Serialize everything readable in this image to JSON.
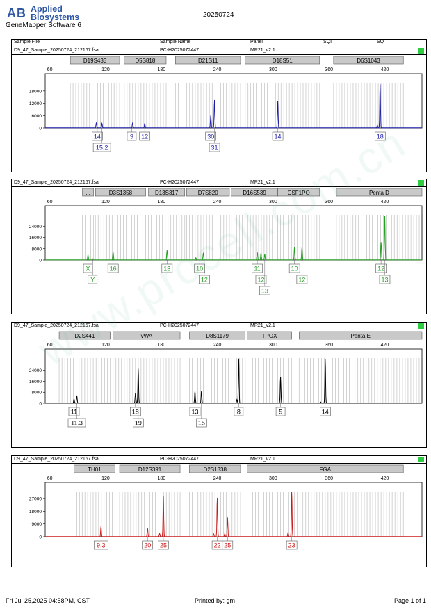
{
  "header": {
    "brand_line1": "Applied",
    "brand_line2": "Biosystems",
    "software": "GeneMapper Software 6",
    "run_date": "20250724"
  },
  "table_header": {
    "sample_file": "Sample File",
    "sample_name": "Sample Name",
    "panel": "Panel",
    "sqi": "SQI",
    "sq": "SQ"
  },
  "footer": {
    "printed_on": "Fri Jul 25,2025 04:58PM, CST",
    "printed_by": "Printed by: gm",
    "page": "Page 1 of 1"
  },
  "watermark": "www.procell.com.cn",
  "colors": {
    "blue": "#1a1aa8",
    "green": "#22a020",
    "black": "#000000",
    "red": "#cc1a1a",
    "sq_ok": "#2ecc40"
  },
  "chart_data": [
    {
      "type": "line",
      "dye": "blue",
      "sample_file": "D9_47_Sample_20250724_212167.fsa",
      "sample_name": "PC-H2025072447",
      "panel": "MR21_v2.1",
      "x_ticks": [
        60,
        120,
        180,
        240,
        300,
        360,
        420
      ],
      "y_ticks": [
        0,
        6000,
        12000,
        18000
      ],
      "ylim": [
        0,
        22000
      ],
      "loci": [
        {
          "name": "D19S433",
          "start": 82,
          "end": 135
        },
        {
          "name": "D5S818",
          "start": 140,
          "end": 185
        },
        {
          "name": "D21S11",
          "start": 195,
          "end": 265
        },
        {
          "name": "D18S51",
          "start": 270,
          "end": 350
        },
        {
          "name": "D6S1043",
          "start": 365,
          "end": 440
        }
      ],
      "peaks": [
        {
          "x": 110,
          "y": 2500
        },
        {
          "x": 116,
          "y": 2100
        },
        {
          "x": 149,
          "y": 2500
        },
        {
          "x": 162,
          "y": 2000
        },
        {
          "x": 233,
          "y": 6000
        },
        {
          "x": 237,
          "y": 13500
        },
        {
          "x": 305,
          "y": 12800
        },
        {
          "x": 415,
          "y": 21200
        },
        {
          "x": 412,
          "y": 1200
        }
      ],
      "alleles": [
        {
          "label": "14",
          "x": 111,
          "row": 0
        },
        {
          "label": "15.2",
          "x": 116,
          "row": 1
        },
        {
          "label": "9",
          "x": 148,
          "row": 0
        },
        {
          "label": "12",
          "x": 162,
          "row": 0
        },
        {
          "label": "30",
          "x": 233,
          "row": 0
        },
        {
          "label": "31",
          "x": 237,
          "row": 1
        },
        {
          "label": "14",
          "x": 305,
          "row": 0
        },
        {
          "label": "18",
          "x": 415,
          "row": 0
        }
      ]
    },
    {
      "type": "line",
      "dye": "green",
      "sample_file": "D9_47_Sample_20250724_212167.fsa",
      "sample_name": "PC-H2025072447",
      "panel": "MR21_v2.1",
      "x_ticks": [
        60,
        120,
        180,
        240,
        300,
        360,
        420
      ],
      "y_ticks": [
        0,
        8000,
        16000,
        24000
      ],
      "ylim": [
        0,
        32000
      ],
      "loci": [
        {
          "name": "...",
          "start": 95,
          "end": 107
        },
        {
          "name": "D3S1358",
          "start": 109,
          "end": 163
        },
        {
          "name": "D13S317",
          "start": 166,
          "end": 205
        },
        {
          "name": "D7S820",
          "start": 207,
          "end": 253
        },
        {
          "name": "D16S539",
          "start": 255,
          "end": 305
        },
        {
          "name": "CSF1PO",
          "start": 305,
          "end": 350
        },
        {
          "name": "Penta D",
          "start": 368,
          "end": 460
        }
      ],
      "peaks": [
        {
          "x": 101,
          "y": 3500
        },
        {
          "x": 106,
          "y": 800
        },
        {
          "x": 128,
          "y": 5800
        },
        {
          "x": 186,
          "y": 6800
        },
        {
          "x": 217,
          "y": 1500
        },
        {
          "x": 225,
          "y": 5000
        },
        {
          "x": 283,
          "y": 5500
        },
        {
          "x": 287,
          "y": 5000
        },
        {
          "x": 291,
          "y": 4000
        },
        {
          "x": 323,
          "y": 9200
        },
        {
          "x": 331,
          "y": 8700
        },
        {
          "x": 416,
          "y": 12500
        },
        {
          "x": 420,
          "y": 31000
        }
      ],
      "alleles": [
        {
          "label": "X",
          "x": 101,
          "row": 0
        },
        {
          "label": "Y",
          "x": 106,
          "row": 1
        },
        {
          "label": "16",
          "x": 128,
          "row": 0
        },
        {
          "label": "13",
          "x": 186,
          "row": 0
        },
        {
          "label": "10",
          "x": 221,
          "row": 0
        },
        {
          "label": "12",
          "x": 226,
          "row": 1
        },
        {
          "label": "11",
          "x": 283,
          "row": 0
        },
        {
          "label": "12",
          "x": 287,
          "row": 1
        },
        {
          "label": "13",
          "x": 291,
          "row": 2
        },
        {
          "label": "10",
          "x": 323,
          "row": 0
        },
        {
          "label": "12",
          "x": 331,
          "row": 1
        },
        {
          "label": "12",
          "x": 416,
          "row": 0
        },
        {
          "label": "13",
          "x": 420,
          "row": 1
        }
      ]
    },
    {
      "type": "line",
      "dye": "black",
      "sample_file": "D9_47_Sample_20250724_212167.fsa",
      "sample_name": "PC-H2025072447",
      "panel": "MR21_v2.1",
      "x_ticks": [
        60,
        120,
        180,
        240,
        300,
        360,
        420
      ],
      "y_ticks": [
        0,
        8000,
        16000,
        24000
      ],
      "ylim": [
        0,
        33000
      ],
      "loci": [
        {
          "name": "D2S441",
          "start": 70,
          "end": 125
        },
        {
          "name": "vWA",
          "start": 128,
          "end": 200
        },
        {
          "name": "D8S1179",
          "start": 210,
          "end": 270
        },
        {
          "name": "TPOX",
          "start": 272,
          "end": 320
        },
        {
          "name": "Penta E",
          "start": 328,
          "end": 460
        }
      ],
      "peaks": [
        {
          "x": 86,
          "y": 3000
        },
        {
          "x": 89,
          "y": 5500
        },
        {
          "x": 152,
          "y": 6500
        },
        {
          "x": 155,
          "y": 25000
        },
        {
          "x": 152.5,
          "y": 1500
        },
        {
          "x": 216,
          "y": 8500
        },
        {
          "x": 223,
          "y": 8800
        },
        {
          "x": 263,
          "y": 32500
        },
        {
          "x": 261,
          "y": 2500
        },
        {
          "x": 308,
          "y": 19000
        },
        {
          "x": 356,
          "y": 32000
        },
        {
          "x": 351,
          "y": 800
        }
      ],
      "alleles": [
        {
          "label": "11",
          "x": 86,
          "row": 0
        },
        {
          "label": "11.3",
          "x": 89,
          "row": 1
        },
        {
          "label": "18",
          "x": 152,
          "row": 0
        },
        {
          "label": "19",
          "x": 155,
          "row": 1
        },
        {
          "label": "13",
          "x": 216,
          "row": 0
        },
        {
          "label": "15",
          "x": 223,
          "row": 1
        },
        {
          "label": "8",
          "x": 263,
          "row": 0
        },
        {
          "label": "5",
          "x": 308,
          "row": 0
        },
        {
          "label": "14",
          "x": 356,
          "row": 0
        }
      ]
    },
    {
      "type": "line",
      "dye": "red",
      "sample_file": "D9_47_Sample_20250724_212167.fsa",
      "sample_name": "PC-H2025072447",
      "panel": "MR21_v2.1",
      "x_ticks": [
        60,
        120,
        180,
        240,
        300,
        360,
        420
      ],
      "y_ticks": [
        0,
        9000,
        18000,
        27000
      ],
      "ylim": [
        0,
        32000
      ],
      "loci": [
        {
          "name": "TH01",
          "start": 86,
          "end": 130
        },
        {
          "name": "D12S391",
          "start": 135,
          "end": 200
        },
        {
          "name": "D2S1338",
          "start": 210,
          "end": 265
        },
        {
          "name": "FGA",
          "start": 272,
          "end": 440
        }
      ],
      "peaks": [
        {
          "x": 115,
          "y": 7200
        },
        {
          "x": 165,
          "y": 6200
        },
        {
          "x": 182,
          "y": 28500
        },
        {
          "x": 178,
          "y": 2200
        },
        {
          "x": 240,
          "y": 27500
        },
        {
          "x": 236,
          "y": 2000
        },
        {
          "x": 251,
          "y": 13500
        },
        {
          "x": 248,
          "y": 2000
        },
        {
          "x": 320,
          "y": 31500
        },
        {
          "x": 316,
          "y": 2800
        }
      ],
      "alleles": [
        {
          "label": "9.3",
          "x": 115,
          "row": 0
        },
        {
          "label": "20",
          "x": 165,
          "row": 0
        },
        {
          "label": "25",
          "x": 182,
          "row": 0
        },
        {
          "label": "22",
          "x": 240,
          "row": 0
        },
        {
          "label": "25",
          "x": 251,
          "row": 0
        },
        {
          "label": "23",
          "x": 320,
          "row": 0
        }
      ]
    }
  ]
}
